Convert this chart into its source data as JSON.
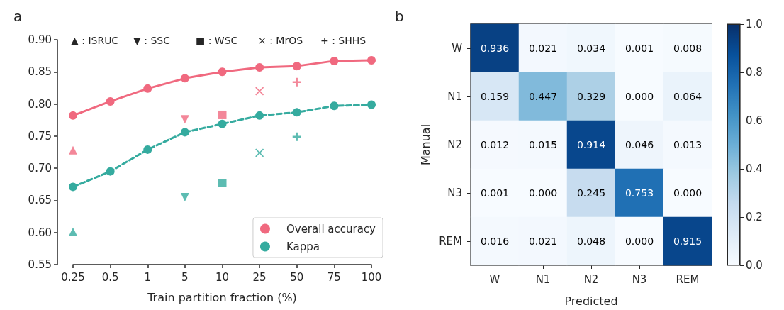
{
  "chart_data": [
    {
      "type": "line",
      "title": "a",
      "xlabel": "Train partition fraction (%)",
      "categories": [
        "0.25",
        "0.5",
        "1",
        "5",
        "10",
        "25",
        "50",
        "75",
        "100"
      ],
      "series": [
        {
          "name": "Overall accuracy",
          "color": "#f0697f",
          "line_style": "solid",
          "marker": "circle",
          "values": [
            0.782,
            0.804,
            0.824,
            0.84,
            0.85,
            0.857,
            0.859,
            0.867,
            0.868
          ]
        },
        {
          "name": "Kappa",
          "color": "#35ab9f",
          "line_style": "dashed",
          "marker": "circle",
          "values": [
            0.671,
            0.695,
            0.729,
            0.756,
            0.769,
            0.782,
            0.787,
            0.797,
            0.799
          ]
        },
        {
          "type": "scatter",
          "marker": "triangle",
          "x": [
            "0.25",
            "0.25"
          ],
          "values": [
            0.728,
            0.601
          ],
          "colors": [
            "#f0697f",
            "#35ab9f"
          ]
        },
        {
          "type": "scatter",
          "marker": "triangle_down",
          "x": [
            "5",
            "5"
          ],
          "values": [
            0.776,
            0.655
          ],
          "colors": [
            "#f0697f",
            "#35ab9f"
          ]
        },
        {
          "type": "scatter",
          "marker": "square",
          "x": [
            "10",
            "10"
          ],
          "values": [
            0.783,
            0.677
          ],
          "colors": [
            "#f0697f",
            "#35ab9f"
          ]
        },
        {
          "type": "scatter",
          "marker": "cross",
          "x": [
            "25",
            "25"
          ],
          "values": [
            0.82,
            0.724
          ],
          "colors": [
            "#f0697f",
            "#35ab9f"
          ]
        },
        {
          "type": "scatter",
          "marker": "plus",
          "x": [
            "50",
            "50"
          ],
          "values": [
            0.834,
            0.749
          ],
          "colors": [
            "#f0697f",
            "#35ab9f"
          ]
        }
      ],
      "annotations": [
        "▲ : ISRUC",
        "▼ : SSC",
        "■ : WSC",
        "× : MrOS",
        "+ : SHHS"
      ],
      "ylim": [
        0.55,
        0.9
      ],
      "yticks": [
        {
          "value": 0.55,
          "label": "0.55"
        },
        {
          "value": 0.6,
          "label": "0.60"
        },
        {
          "value": 0.65,
          "label": "0.65"
        },
        {
          "value": 0.7,
          "label": "0.70"
        },
        {
          "value": 0.75,
          "label": "0.75"
        },
        {
          "value": 0.8,
          "label": "0.80"
        },
        {
          "value": 0.85,
          "label": "0.85"
        },
        {
          "value": 0.9,
          "label": "0.90"
        }
      ],
      "grid": false,
      "legend": "bottom right"
    },
    {
      "type": "heatmap",
      "title": "b",
      "xlabel": "Predicted",
      "ylabel": "Manual",
      "categories": [
        "W",
        "N1",
        "N2",
        "N3",
        "REM"
      ],
      "y_categories": [
        "W",
        "N1",
        "N2",
        "N3",
        "REM"
      ],
      "cells": [
        [
          0.936,
          0.021,
          0.034,
          0.001,
          0.008
        ],
        [
          0.159,
          0.447,
          0.329,
          0.0,
          0.064
        ],
        [
          0.012,
          0.015,
          0.914,
          0.046,
          0.013
        ],
        [
          0.001,
          0.0,
          0.245,
          0.753,
          0.0
        ],
        [
          0.016,
          0.021,
          0.048,
          0.0,
          0.915
        ]
      ],
      "cell_labels": [
        [
          "0.936",
          "0.021",
          "0.034",
          "0.001",
          "0.008"
        ],
        [
          "0.159",
          "0.447",
          "0.329",
          "0.000",
          "0.064"
        ],
        [
          "0.012",
          "0.015",
          "0.914",
          "0.046",
          "0.013"
        ],
        [
          "0.001",
          "0.000",
          "0.245",
          "0.753",
          "0.000"
        ],
        [
          "0.016",
          "0.021",
          "0.048",
          "0.000",
          "0.915"
        ]
      ],
      "clim": [
        0,
        1
      ],
      "cticks": [
        {
          "value": 0,
          "label": "0.0"
        },
        {
          "value": 0.2,
          "label": "0.2"
        },
        {
          "value": 0.4,
          "label": "0.4"
        },
        {
          "value": 0.6,
          "label": "0.6"
        },
        {
          "value": 0.8,
          "label": "0.8"
        },
        {
          "value": 1,
          "label": "1.0"
        }
      ]
    }
  ]
}
